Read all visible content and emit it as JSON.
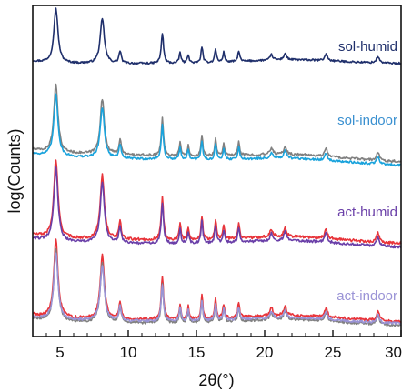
{
  "chart_data": {
    "type": "line",
    "title": "",
    "xlabel": "2θ(°)",
    "ylabel": "log(Counts)",
    "xlim": [
      3,
      30
    ],
    "x_ticks": [
      5,
      10,
      15,
      20,
      25,
      30
    ],
    "y_ticks_shown": false,
    "y_scale": "log",
    "layout_note": "stacked offset powder diffraction patterns",
    "grid": false,
    "legend": "inline labels at right of each stack",
    "groups": [
      {
        "label": "sol-humid",
        "label_color": "#1f2f6b",
        "series": [
          {
            "color": "#1f2f6b",
            "peaks_2theta": [
              4.7,
              8.1,
              9.4,
              12.5,
              13.8,
              14.4,
              15.4,
              16.4,
              17.0,
              18.1,
              20.5,
              21.5,
              24.5,
              28.3
            ]
          }
        ]
      },
      {
        "label": "sol-indoor",
        "label_color": "#3a90d0",
        "series": [
          {
            "color": "#808080",
            "peaks_2theta": [
              4.7,
              8.1,
              9.4,
              12.5,
              13.8,
              14.4,
              15.4,
              16.4,
              17.0,
              18.1,
              20.5,
              21.5,
              24.5,
              28.3
            ]
          },
          {
            "color": "#1aa3dc",
            "peaks_2theta": [
              4.7,
              8.1,
              9.4,
              12.5,
              13.8,
              14.4,
              15.4,
              16.4,
              17.0,
              18.1,
              20.5,
              21.5,
              24.5,
              28.3
            ]
          }
        ]
      },
      {
        "label": "act-humid",
        "label_color": "#6a3fa8",
        "series": [
          {
            "color": "#e8343a",
            "peaks_2theta": [
              4.7,
              8.1,
              9.4,
              12.5,
              13.8,
              14.4,
              15.4,
              16.4,
              17.0,
              18.1,
              20.5,
              21.5,
              24.5,
              28.3
            ]
          },
          {
            "color": "#6a3fa8",
            "peaks_2theta": [
              4.7,
              8.1,
              9.4,
              12.5,
              13.8,
              14.4,
              15.4,
              16.4,
              17.0,
              18.1,
              20.5,
              21.5,
              24.5,
              28.3
            ]
          }
        ]
      },
      {
        "label": "act-indoor",
        "label_color": "#9a93d6",
        "series": [
          {
            "color": "#e8343a",
            "peaks_2theta": [
              4.7,
              8.1,
              9.4,
              12.5,
              13.8,
              14.4,
              15.4,
              16.4,
              17.0,
              18.1,
              20.5,
              21.5,
              24.5,
              28.3
            ]
          },
          {
            "color": "#808080",
            "peaks_2theta": [
              4.7,
              8.1,
              9.4,
              12.5,
              13.8,
              14.4,
              15.4,
              16.4,
              17.0,
              18.1,
              20.5,
              21.5,
              24.5,
              28.3
            ]
          },
          {
            "color": "#9a93d6",
            "peaks_2theta": [
              4.7,
              8.1,
              9.4,
              12.5,
              13.8,
              14.4,
              15.4,
              16.4,
              17.0,
              18.1,
              20.5,
              21.5,
              24.5,
              28.3
            ]
          }
        ]
      }
    ]
  }
}
